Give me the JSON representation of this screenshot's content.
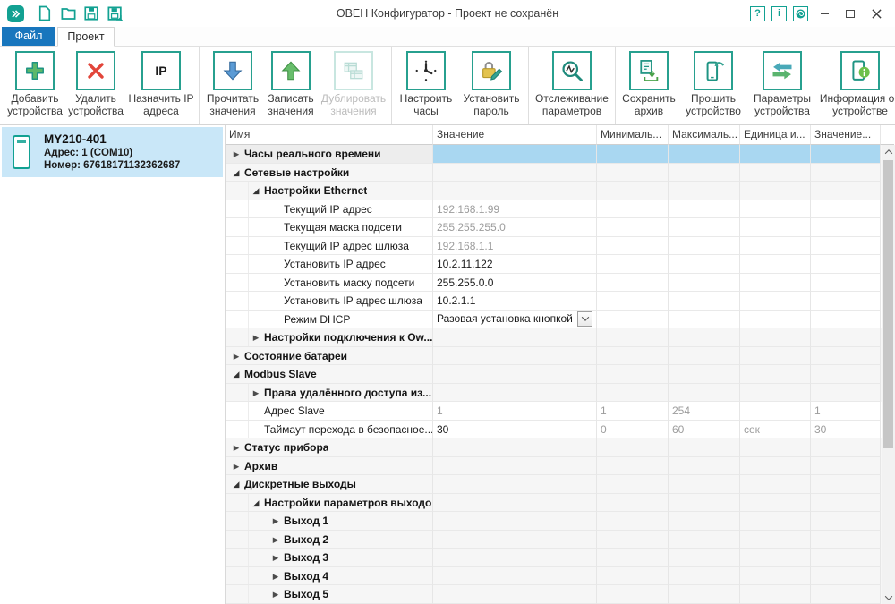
{
  "window": {
    "title": "ОВЕН Конфигуратор - Проект не сохранён",
    "help_glyph": "?",
    "info_glyph": "i"
  },
  "colors": {
    "accent_teal": "#12a192",
    "tab_blue": "#1876bd",
    "selection_blue": "#a9d7f1",
    "device_card_blue": "#c9e7f8",
    "disabled_icon_border": "#c8e6e0",
    "readonly_text": "#9c9c9c",
    "red_delete": "#e2453a",
    "green_write": "#67bd6b",
    "blue_read": "#5b9bd5"
  },
  "tabs": [
    {
      "label": "Файл",
      "active": true
    },
    {
      "label": "Проект",
      "active": false
    }
  ],
  "toolbar": {
    "groups": [
      {
        "buttons": [
          {
            "label": "Добавить устройства",
            "icon": "plus-icon"
          },
          {
            "label": "Удалить устройства",
            "icon": "delete-icon"
          },
          {
            "label": "Назначить IP адреса",
            "icon": "ip-icon",
            "icon_text": "IP"
          }
        ]
      },
      {
        "buttons": [
          {
            "label": "Прочитать значения",
            "icon": "arrow-down-icon"
          },
          {
            "label": "Записать значения",
            "icon": "arrow-up-icon"
          },
          {
            "label": "Дублировать значения",
            "icon": "duplicate-icon",
            "disabled": true
          }
        ]
      },
      {
        "buttons": [
          {
            "label": "Настроить часы",
            "icon": "clock-icon"
          },
          {
            "label": "Установить пароль",
            "icon": "lock-pencil-icon"
          }
        ]
      },
      {
        "buttons": [
          {
            "label": "Отслеживание параметров",
            "icon": "monitor-icon"
          }
        ]
      },
      {
        "buttons": [
          {
            "label": "Сохранить архив",
            "icon": "archive-download-icon"
          },
          {
            "label": "Прошить устройство",
            "icon": "flash-device-icon"
          },
          {
            "label": "Параметры устройства",
            "icon": "device-params-icon"
          },
          {
            "label": "Информация об устройстве",
            "icon": "device-info-icon"
          }
        ]
      }
    ]
  },
  "device_panel": {
    "model": "MY210-401",
    "address": "Адрес: 1 (COM10)",
    "serial": "Номер: 67618171132362687"
  },
  "table": {
    "columns": [
      "Имя",
      "Значение",
      "Минималь...",
      "Максималь...",
      "Единица и...",
      "Значение..."
    ],
    "rows": [
      {
        "name": "Часы реального времени",
        "level": 0,
        "expander": "collapsed",
        "group": true,
        "selected": true,
        "value": "",
        "min": "",
        "max": "",
        "unit": "",
        "default": ""
      },
      {
        "name": "Сетевые настройки",
        "level": 0,
        "expander": "expanded",
        "group": true,
        "value": "",
        "min": "",
        "max": "",
        "unit": "",
        "default": ""
      },
      {
        "name": "Настройки Ethernet",
        "level": 1,
        "expander": "expanded",
        "group": true,
        "value": "",
        "min": "",
        "max": "",
        "unit": "",
        "default": ""
      },
      {
        "name": "Текущий IP адрес",
        "level": 2,
        "expander": "none",
        "value": "192.168.1.99",
        "value_gray": true,
        "min": "",
        "max": "",
        "unit": "",
        "default": ""
      },
      {
        "name": "Текущая маска подсети",
        "level": 2,
        "expander": "none",
        "value": "255.255.255.0",
        "value_gray": true,
        "min": "",
        "max": "",
        "unit": "",
        "default": ""
      },
      {
        "name": "Текущий IP адрес шлюза",
        "level": 2,
        "expander": "none",
        "value": "192.168.1.1",
        "value_gray": true,
        "min": "",
        "max": "",
        "unit": "",
        "default": ""
      },
      {
        "name": "Установить IP адрес",
        "level": 2,
        "expander": "none",
        "value": "10.2.11.122",
        "min": "",
        "max": "",
        "unit": "",
        "default": ""
      },
      {
        "name": "Установить маску подсети",
        "level": 2,
        "expander": "none",
        "value": "255.255.0.0",
        "min": "",
        "max": "",
        "unit": "",
        "default": ""
      },
      {
        "name": "Установить IP адрес шлюза",
        "level": 2,
        "expander": "none",
        "value": "10.2.1.1",
        "min": "",
        "max": "",
        "unit": "",
        "default": ""
      },
      {
        "name": "Режим DHCP",
        "level": 2,
        "expander": "none",
        "value": "Разовая установка кнопкой",
        "dropdown": true,
        "min": "",
        "max": "",
        "unit": "",
        "default": ""
      },
      {
        "name": "Настройки подключения к Ow...",
        "level": 1,
        "expander": "collapsed",
        "group": true,
        "value": "",
        "min": "",
        "max": "",
        "unit": "",
        "default": ""
      },
      {
        "name": "Состояние батареи",
        "level": 0,
        "expander": "collapsed",
        "group": true,
        "value": "",
        "min": "",
        "max": "",
        "unit": "",
        "default": ""
      },
      {
        "name": "Modbus Slave",
        "level": 0,
        "expander": "expanded",
        "group": true,
        "value": "",
        "min": "",
        "max": "",
        "unit": "",
        "default": ""
      },
      {
        "name": "Права удалённого доступа из...",
        "level": 1,
        "expander": "collapsed",
        "group": true,
        "value": "",
        "min": "",
        "max": "",
        "unit": "",
        "default": ""
      },
      {
        "name": "Адрес Slave",
        "level": 1,
        "expander": "none",
        "value": "1",
        "value_gray": true,
        "min": "1",
        "max": "254",
        "unit": "",
        "default": "1"
      },
      {
        "name": "Таймаут перехода в безопасное...",
        "level": 1,
        "expander": "none",
        "value": "30",
        "min": "0",
        "max": "60",
        "unit": "сек",
        "default": "30"
      },
      {
        "name": "Статус прибора",
        "level": 0,
        "expander": "collapsed",
        "group": true,
        "value": "",
        "min": "",
        "max": "",
        "unit": "",
        "default": ""
      },
      {
        "name": "Архив",
        "level": 0,
        "expander": "collapsed",
        "group": true,
        "value": "",
        "min": "",
        "max": "",
        "unit": "",
        "default": ""
      },
      {
        "name": "Дискретные выходы",
        "level": 0,
        "expander": "expanded",
        "group": true,
        "value": "",
        "min": "",
        "max": "",
        "unit": "",
        "default": ""
      },
      {
        "name": "Настройки параметров выходов",
        "level": 1,
        "expander": "expanded",
        "group": true,
        "value": "",
        "min": "",
        "max": "",
        "unit": "",
        "default": ""
      },
      {
        "name": "Выход 1",
        "level": 2,
        "expander": "collapsed",
        "group": true,
        "value": "",
        "min": "",
        "max": "",
        "unit": "",
        "default": ""
      },
      {
        "name": "Выход 2",
        "level": 2,
        "expander": "collapsed",
        "group": true,
        "value": "",
        "min": "",
        "max": "",
        "unit": "",
        "default": ""
      },
      {
        "name": "Выход 3",
        "level": 2,
        "expander": "collapsed",
        "group": true,
        "value": "",
        "min": "",
        "max": "",
        "unit": "",
        "default": ""
      },
      {
        "name": "Выход 4",
        "level": 2,
        "expander": "collapsed",
        "group": true,
        "value": "",
        "min": "",
        "max": "",
        "unit": "",
        "default": ""
      },
      {
        "name": "Выход 5",
        "level": 2,
        "expander": "collapsed",
        "group": true,
        "value": "",
        "min": "",
        "max": "",
        "unit": "",
        "default": ""
      }
    ]
  }
}
